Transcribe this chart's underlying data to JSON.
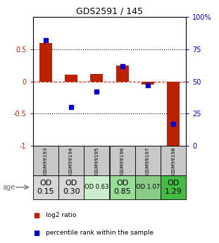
{
  "title": "GDS2591 / 145",
  "samples": [
    "GSM99193",
    "GSM99194",
    "GSM99195",
    "GSM99196",
    "GSM99197",
    "GSM99198"
  ],
  "log2_ratio": [
    0.6,
    0.1,
    0.12,
    0.25,
    -0.05,
    -1.02
  ],
  "percentile_rank": [
    82,
    30,
    42,
    62,
    47,
    17
  ],
  "od_labels_line1": [
    "OD",
    "OD",
    "OD 0.63",
    "OD",
    "OD 1.07",
    "OD"
  ],
  "od_labels_line2": [
    "0.15",
    "0.30",
    "",
    "0.85",
    "",
    "1.29"
  ],
  "od_fontsize_large": 8,
  "od_fontsize_small": 6,
  "od_large": [
    true,
    true,
    false,
    true,
    false,
    true
  ],
  "cell_colors_gsm": [
    "#c8c8c8",
    "#c8c8c8",
    "#c8c8c8",
    "#c8c8c8",
    "#c8c8c8",
    "#c8c8c8"
  ],
  "cell_colors_od": [
    "#d8d8d8",
    "#d8d8d8",
    "#cceecc",
    "#99dd99",
    "#88cc88",
    "#44bb44"
  ],
  "bar_color": "#bb2200",
  "dot_color": "#0000cc",
  "ylim_left": [
    -1,
    1
  ],
  "ylim_right": [
    0,
    100
  ],
  "yticks_left": [
    -1,
    -0.5,
    0,
    0.5
  ],
  "ytick_labels_left": [
    "-1",
    "-0.5",
    "0",
    "0.5"
  ],
  "yticks_right": [
    0,
    25,
    50,
    75,
    100
  ],
  "ytick_labels_right": [
    "0",
    "25",
    "50",
    "75",
    "100%"
  ],
  "hline_dotted": [
    0.5,
    -0.5
  ],
  "zero_line_y": 0,
  "background_color": "#ffffff",
  "legend_red_label": "log2 ratio",
  "legend_blue_label": "percentile rank within the sample",
  "age_label": "age",
  "bar_width": 0.5
}
